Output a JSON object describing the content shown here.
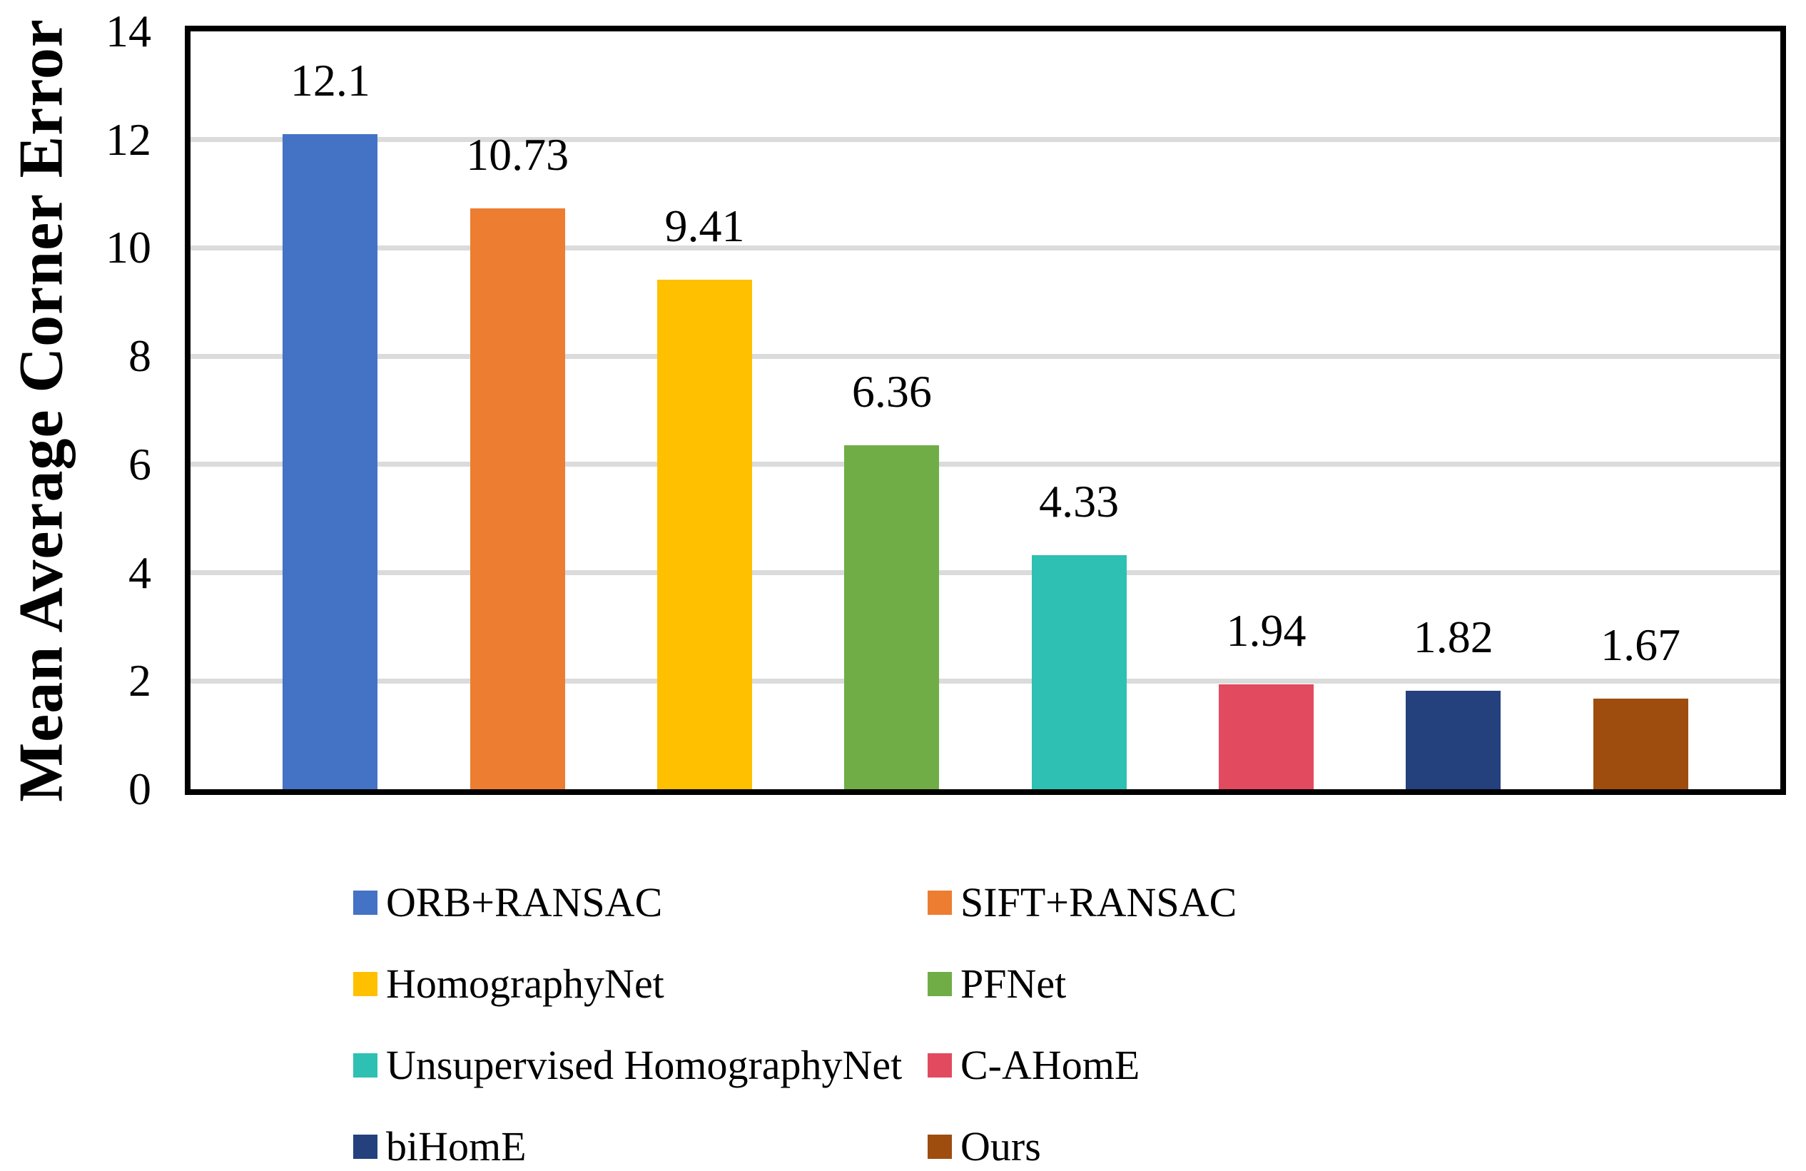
{
  "chart_data": {
    "type": "bar",
    "title": "",
    "xlabel": "",
    "ylabel": "Mean Average Corner Error",
    "ylim": [
      0,
      14
    ],
    "ytick_interval": 2,
    "yticks": [
      "0",
      "2",
      "4",
      "6",
      "8",
      "10",
      "12",
      "14"
    ],
    "grid": true,
    "gridline_values": [
      2,
      4,
      6,
      8,
      10,
      12
    ],
    "legend_position": "bottom",
    "categories": [
      "ORB+RANSAC",
      "SIFT+RANSAC",
      "HomographyNet",
      "PFNet",
      "Unsupervised HomographyNet",
      "C-AHomE",
      "biHomE",
      "Ours"
    ],
    "values": [
      12.1,
      10.73,
      9.41,
      6.36,
      4.33,
      1.94,
      1.82,
      1.67
    ],
    "value_labels": [
      "12.1",
      "10.73",
      "9.41",
      "6.36",
      "4.33",
      "1.94",
      "1.82",
      "1.67"
    ],
    "colors": [
      "#4472C4",
      "#ED7D31",
      "#FFC000",
      "#70AD47",
      "#2EC0B2",
      "#E24A5F",
      "#24417E",
      "#9E4D0E"
    ],
    "frame_color": "#000000",
    "gridline_color": "#DBDBDB"
  }
}
